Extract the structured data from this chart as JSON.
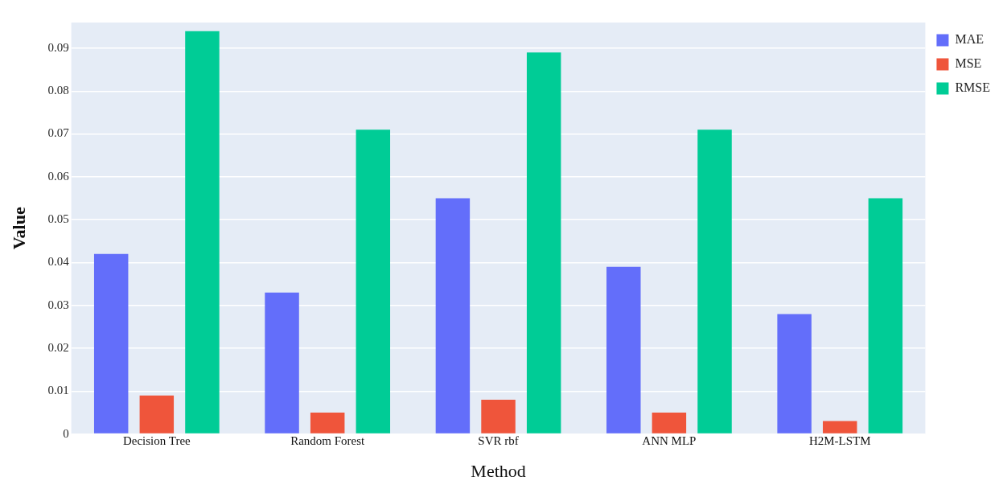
{
  "chart_data": {
    "type": "bar",
    "xlabel": "Method",
    "ylabel": "Value",
    "categories": [
      "Decision Tree",
      "Random Forest",
      "SVR rbf",
      "ANN MLP",
      "H2M-LSTM"
    ],
    "series": [
      {
        "name": "MAE",
        "color": "#636efa",
        "values": [
          0.042,
          0.033,
          0.055,
          0.039,
          0.028
        ]
      },
      {
        "name": "MSE",
        "color": "#ef553b",
        "values": [
          0.009,
          0.005,
          0.008,
          0.005,
          0.003
        ]
      },
      {
        "name": "RMSE",
        "color": "#00cc96",
        "values": [
          0.094,
          0.071,
          0.089,
          0.071,
          0.055
        ]
      }
    ],
    "ylim": [
      0,
      0.096
    ],
    "yticks": [
      0,
      0.01,
      0.02,
      0.03,
      0.04,
      0.05,
      0.06,
      0.07,
      0.08,
      0.09
    ],
    "grid": "y",
    "legend": "top right"
  }
}
